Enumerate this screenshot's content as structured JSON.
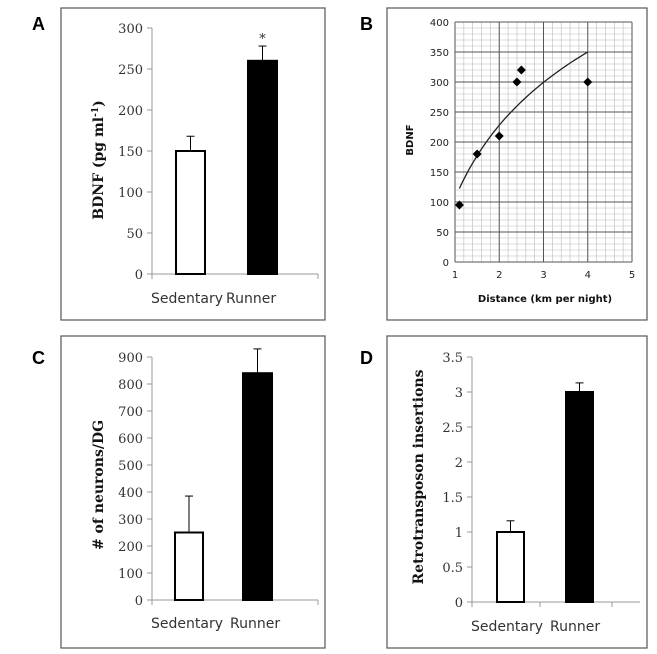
{
  "panel_labels": [
    "A",
    "B",
    "C",
    "D"
  ],
  "chart_data": [
    {
      "type": "bar",
      "panel": "A",
      "categories": [
        "Sedentary",
        "Runner"
      ],
      "values": [
        150,
        260
      ],
      "errors": [
        18,
        18
      ],
      "fills": [
        "#ffffff",
        "#000000"
      ],
      "annotation": "*",
      "ylabel_main": "BDNF (pg ml",
      "ylabel_sup": "-1",
      "ylabel_end": ")",
      "ylim": [
        0,
        300
      ],
      "yticks": [
        "0",
        "50",
        "100",
        "150",
        "200",
        "250",
        "300"
      ],
      "grid": false
    },
    {
      "type": "scatter",
      "panel": "B",
      "points": [
        {
          "x": 1.1,
          "y": 95
        },
        {
          "x": 1.5,
          "y": 180
        },
        {
          "x": 2.0,
          "y": 210
        },
        {
          "x": 2.4,
          "y": 300
        },
        {
          "x": 2.5,
          "y": 320
        },
        {
          "x": 4.0,
          "y": 300
        }
      ],
      "trendline": "logarithmic",
      "xlabel": "Distance (km per night)",
      "ylabel": "BDNF",
      "xlim": [
        1,
        5
      ],
      "ylim": [
        0,
        400
      ],
      "xticks": [
        "1",
        "2",
        "3",
        "4",
        "5"
      ],
      "yticks": [
        "0",
        "50",
        "100",
        "150",
        "200",
        "250",
        "300",
        "350",
        "400"
      ],
      "grid": true
    },
    {
      "type": "bar",
      "panel": "C",
      "categories": [
        "Sedentary",
        "Runner"
      ],
      "values": [
        250,
        840
      ],
      "errors": [
        135,
        90
      ],
      "fills": [
        "#ffffff",
        "#000000"
      ],
      "ylabel": "# of neurons/DG",
      "ylim": [
        0,
        900
      ],
      "yticks": [
        "0",
        "100",
        "200",
        "300",
        "400",
        "500",
        "600",
        "700",
        "800",
        "900"
      ],
      "grid": false
    },
    {
      "type": "bar",
      "panel": "D",
      "categories": [
        "Sedentary",
        "Runner"
      ],
      "values": [
        1.0,
        3.0
      ],
      "errors": [
        0.16,
        0.13
      ],
      "fills": [
        "#ffffff",
        "#000000"
      ],
      "ylabel": "Retrotransposon insertions",
      "ylim": [
        0,
        3.5
      ],
      "yticks": [
        "0",
        "0.5",
        "1",
        "1.5",
        "2",
        "2.5",
        "3",
        "3.5"
      ],
      "grid": false
    }
  ]
}
